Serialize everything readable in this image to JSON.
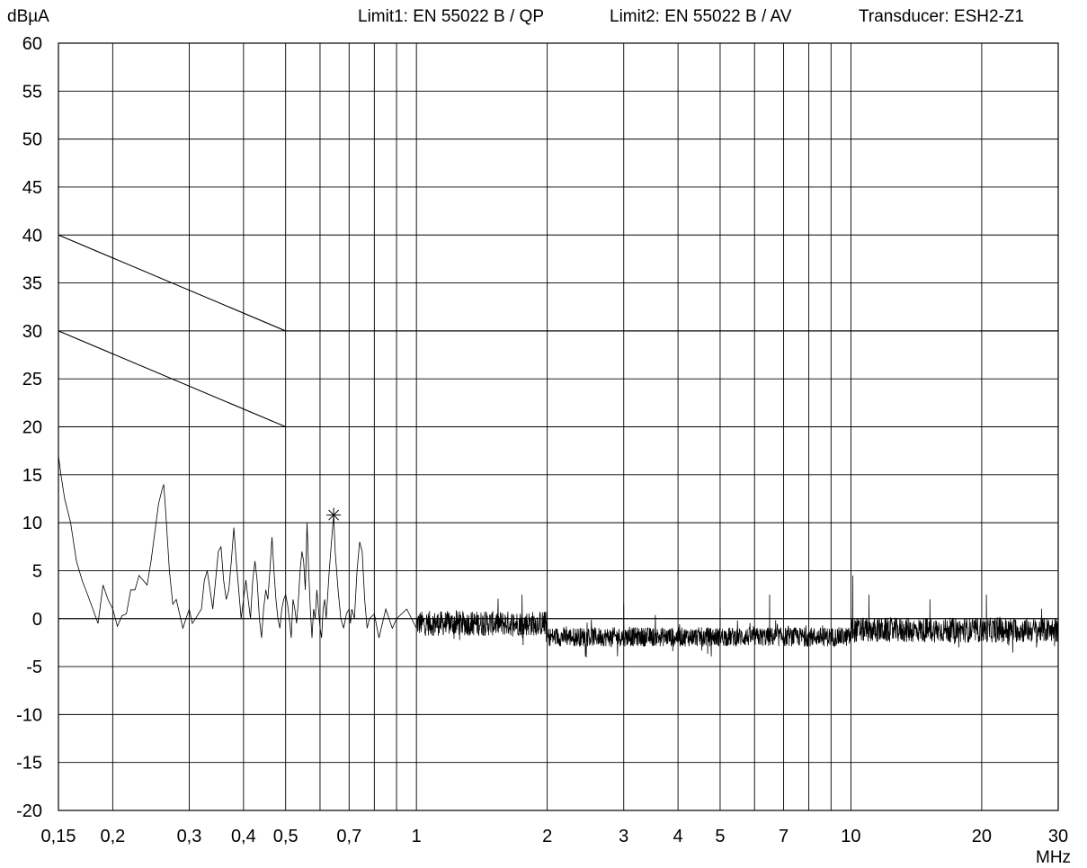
{
  "header": {
    "y_unit": "dBµA",
    "limit1": "Limit1: EN 55022 B / QP",
    "limit2": "Limit2: EN 55022 B / AV",
    "transducer": "Transducer: ESH2-Z1"
  },
  "x_unit": "MHz",
  "chart_data": {
    "type": "line",
    "xscale": "log",
    "xlim": [
      0.15,
      30
    ],
    "ylim": [
      -20,
      60
    ],
    "xlabel": "MHz",
    "ylabel": "dBµA",
    "grid": true,
    "y_ticks": [
      60,
      55,
      50,
      45,
      40,
      35,
      30,
      25,
      20,
      15,
      10,
      5,
      0,
      -5,
      -10,
      -15,
      -20
    ],
    "x_ticks": [
      {
        "value": 0.15,
        "label": "0,15"
      },
      {
        "value": 0.2,
        "label": "0,2"
      },
      {
        "value": 0.3,
        "label": "0,3"
      },
      {
        "value": 0.4,
        "label": "0,4"
      },
      {
        "value": 0.5,
        "label": "0,5"
      },
      {
        "value": 0.6,
        "label": ""
      },
      {
        "value": 0.7,
        "label": "0,7"
      },
      {
        "value": 0.8,
        "label": ""
      },
      {
        "value": 0.9,
        "label": ""
      },
      {
        "value": 1,
        "label": "1"
      },
      {
        "value": 2,
        "label": "2"
      },
      {
        "value": 3,
        "label": "3"
      },
      {
        "value": 4,
        "label": "4"
      },
      {
        "value": 5,
        "label": "5"
      },
      {
        "value": 6,
        "label": ""
      },
      {
        "value": 7,
        "label": "7"
      },
      {
        "value": 8,
        "label": ""
      },
      {
        "value": 9,
        "label": ""
      },
      {
        "value": 10,
        "label": "10"
      },
      {
        "value": 20,
        "label": "20"
      },
      {
        "value": 30,
        "label": "30"
      }
    ],
    "limit_lines": [
      {
        "name": "EN 55022 B / QP",
        "points": [
          [
            0.15,
            40
          ],
          [
            0.5,
            30
          ],
          [
            30,
            30
          ]
        ]
      },
      {
        "name": "EN 55022 B / AV",
        "points": [
          [
            0.15,
            30
          ],
          [
            0.5,
            20
          ],
          [
            30,
            20
          ]
        ]
      }
    ],
    "series": [
      {
        "points": [
          [
            0.15,
            17
          ],
          [
            0.152,
            15
          ],
          [
            0.155,
            12.5
          ],
          [
            0.158,
            11
          ],
          [
            0.16,
            10
          ],
          [
            0.165,
            6
          ],
          [
            0.17,
            4
          ],
          [
            0.175,
            2.5
          ],
          [
            0.18,
            1
          ],
          [
            0.185,
            -0.5
          ],
          [
            0.19,
            3.5
          ],
          [
            0.195,
            2
          ],
          [
            0.2,
            1
          ],
          [
            0.205,
            -0.8
          ],
          [
            0.21,
            0.3
          ],
          [
            0.215,
            0.5
          ],
          [
            0.22,
            3
          ],
          [
            0.225,
            3
          ],
          [
            0.23,
            4.5
          ],
          [
            0.235,
            4
          ],
          [
            0.24,
            3.5
          ],
          [
            0.245,
            6
          ],
          [
            0.25,
            9
          ],
          [
            0.255,
            12
          ],
          [
            0.26,
            13.5
          ],
          [
            0.262,
            14
          ],
          [
            0.265,
            11
          ],
          [
            0.27,
            5
          ],
          [
            0.275,
            1.5
          ],
          [
            0.28,
            2
          ],
          [
            0.285,
            0.5
          ],
          [
            0.29,
            -1
          ],
          [
            0.295,
            0
          ],
          [
            0.3,
            1
          ],
          [
            0.305,
            -0.5
          ],
          [
            0.31,
            0
          ],
          [
            0.315,
            0.5
          ],
          [
            0.32,
            1
          ],
          [
            0.325,
            4
          ],
          [
            0.33,
            5
          ],
          [
            0.335,
            3
          ],
          [
            0.34,
            1
          ],
          [
            0.345,
            4
          ],
          [
            0.35,
            7
          ],
          [
            0.355,
            7.5
          ],
          [
            0.36,
            4
          ],
          [
            0.365,
            2
          ],
          [
            0.37,
            3
          ],
          [
            0.375,
            6
          ],
          [
            0.38,
            9.5
          ],
          [
            0.385,
            6
          ],
          [
            0.39,
            3
          ],
          [
            0.395,
            0
          ],
          [
            0.4,
            2
          ],
          [
            0.405,
            4
          ],
          [
            0.41,
            2
          ],
          [
            0.415,
            0
          ],
          [
            0.42,
            4
          ],
          [
            0.425,
            6
          ],
          [
            0.43,
            4
          ],
          [
            0.435,
            0
          ],
          [
            0.44,
            -2
          ],
          [
            0.445,
            1
          ],
          [
            0.45,
            3
          ],
          [
            0.455,
            2
          ],
          [
            0.46,
            5
          ],
          [
            0.465,
            8.5
          ],
          [
            0.47,
            5
          ],
          [
            0.475,
            2
          ],
          [
            0.48,
            0
          ],
          [
            0.485,
            -1
          ],
          [
            0.49,
            1
          ],
          [
            0.495,
            2
          ],
          [
            0.5,
            2.5
          ],
          [
            0.505,
            1.5
          ],
          [
            0.51,
            0
          ],
          [
            0.515,
            -2
          ],
          [
            0.52,
            2
          ],
          [
            0.525,
            1
          ],
          [
            0.53,
            -0.5
          ],
          [
            0.535,
            2
          ],
          [
            0.54,
            5
          ],
          [
            0.545,
            7
          ],
          [
            0.55,
            6
          ],
          [
            0.555,
            3
          ],
          [
            0.56,
            10
          ],
          [
            0.565,
            5
          ],
          [
            0.57,
            1
          ],
          [
            0.575,
            -2
          ],
          [
            0.58,
            1
          ],
          [
            0.585,
            0
          ],
          [
            0.59,
            3
          ],
          [
            0.595,
            1
          ],
          [
            0.6,
            -1
          ],
          [
            0.605,
            -2
          ],
          [
            0.61,
            1
          ],
          [
            0.615,
            2
          ],
          [
            0.62,
            0
          ],
          [
            0.63,
            5
          ],
          [
            0.64,
            9
          ],
          [
            0.645,
            10.8
          ],
          [
            0.65,
            7
          ],
          [
            0.66,
            3
          ],
          [
            0.67,
            0
          ],
          [
            0.68,
            -1
          ],
          [
            0.69,
            0.5
          ],
          [
            0.7,
            1
          ],
          [
            0.705,
            -0.5
          ],
          [
            0.71,
            1
          ],
          [
            0.72,
            0
          ],
          [
            0.73,
            5
          ],
          [
            0.74,
            8
          ],
          [
            0.75,
            7
          ],
          [
            0.76,
            2
          ],
          [
            0.77,
            -1
          ],
          [
            0.78,
            0
          ],
          [
            0.8,
            0.5
          ],
          [
            0.82,
            -2
          ],
          [
            0.85,
            1
          ],
          [
            0.88,
            -1
          ],
          [
            0.9,
            0
          ],
          [
            0.95,
            1
          ],
          [
            1.0,
            -1
          ]
        ]
      }
    ],
    "noise_segments": [
      {
        "range": [
          1.0,
          2.0
        ],
        "level": -0.5,
        "spread": 1.3
      },
      {
        "range": [
          2.0,
          10.0
        ],
        "level": -1.9,
        "spread": 1.0
      },
      {
        "range": [
          10.0,
          30.0
        ],
        "level": -1.2,
        "spread": 1.3
      }
    ],
    "spikes": [
      [
        1.75,
        2.5
      ],
      [
        3.0,
        1.5
      ],
      [
        5.0,
        1.2
      ],
      [
        6.5,
        2.5
      ],
      [
        10.1,
        4.5
      ],
      [
        11.0,
        2.5
      ],
      [
        20.5,
        2.5
      ],
      [
        15.2,
        2.0
      ],
      [
        0,
        0
      ]
    ],
    "marker": {
      "x": 0.645,
      "y": 10.8,
      "symbol": "*"
    }
  }
}
